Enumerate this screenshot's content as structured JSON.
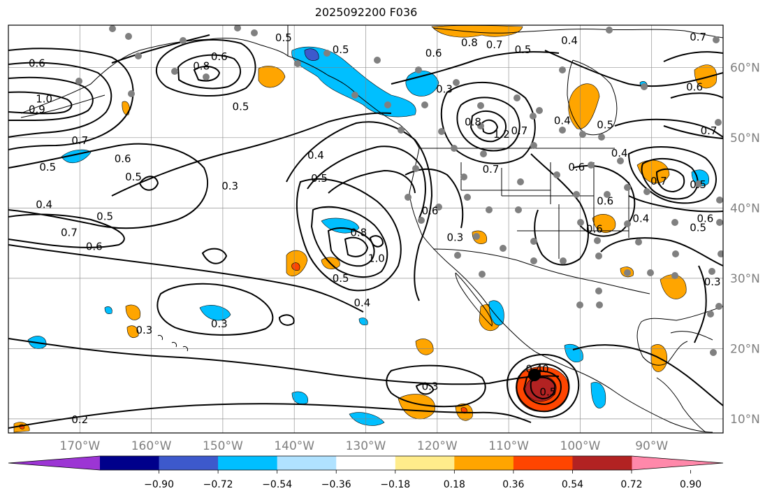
{
  "title": "2025092200 F036",
  "map": {
    "lon_ticks": [
      {
        "lon": -170,
        "label": "170°W"
      },
      {
        "lon": -160,
        "label": "160°W"
      },
      {
        "lon": -150,
        "label": "150°W"
      },
      {
        "lon": -140,
        "label": "140°W"
      },
      {
        "lon": -130,
        "label": "130°W"
      },
      {
        "lon": -120,
        "label": "120°W"
      },
      {
        "lon": -110,
        "label": "110°W"
      },
      {
        "lon": -100,
        "label": "100°W"
      },
      {
        "lon": -90,
        "label": "90°W"
      }
    ],
    "lat_ticks": [
      {
        "lat": 10,
        "label": "10°N"
      },
      {
        "lat": 20,
        "label": "20°N"
      },
      {
        "lat": 30,
        "label": "30°N"
      },
      {
        "lat": 40,
        "label": "40°N"
      },
      {
        "lat": 50,
        "label": "50°N"
      },
      {
        "lat": 60,
        "label": "60°N"
      }
    ],
    "extent": {
      "lon_min": -180,
      "lon_max": -80,
      "lat_min": 8,
      "lat_max": 66
    },
    "gridlines": true,
    "contour_labels": [
      {
        "text": "0.5",
        "lon": -141.5,
        "lat": 64.2
      },
      {
        "text": "0.5",
        "lon": -133.5,
        "lat": 62.5
      },
      {
        "text": "0.6",
        "lon": -176,
        "lat": 60.6
      },
      {
        "text": "0.6",
        "lon": -150.5,
        "lat": 61.5
      },
      {
        "text": "0.8",
        "lon": -153,
        "lat": 60.2
      },
      {
        "text": "1.0",
        "lon": -175,
        "lat": 55.5
      },
      {
        "text": "0.9",
        "lon": -176,
        "lat": 54.0
      },
      {
        "text": "0.5",
        "lon": -147.5,
        "lat": 54.4
      },
      {
        "text": "0.7",
        "lon": -170,
        "lat": 49.6
      },
      {
        "text": "0.5",
        "lon": -174.5,
        "lat": 45.8
      },
      {
        "text": "0.5",
        "lon": -162.5,
        "lat": 44.4
      },
      {
        "text": "0.3",
        "lon": -149,
        "lat": 43.1
      },
      {
        "text": "0.4",
        "lon": -175,
        "lat": 40.5
      },
      {
        "text": "0.5",
        "lon": -166.5,
        "lat": 38.8
      },
      {
        "text": "0.7",
        "lon": -171.5,
        "lat": 36.5
      },
      {
        "text": "0.6",
        "lon": -168,
        "lat": 34.5
      },
      {
        "text": "0.4",
        "lon": -137,
        "lat": 47.5
      },
      {
        "text": "0.5",
        "lon": -136.5,
        "lat": 44.2
      },
      {
        "text": "0.6",
        "lon": -120.5,
        "lat": 62.0
      },
      {
        "text": "0.8",
        "lon": -115.5,
        "lat": 63.5
      },
      {
        "text": "0.7",
        "lon": -112,
        "lat": 63.2
      },
      {
        "text": "0.5",
        "lon": -108,
        "lat": 62.5
      },
      {
        "text": "0.4",
        "lon": -101.5,
        "lat": 63.8
      },
      {
        "text": "0.3",
        "lon": -119,
        "lat": 56.9
      },
      {
        "text": "0.8",
        "lon": -115,
        "lat": 52.2
      },
      {
        "text": "1.2",
        "lon": -111,
        "lat": 50.5
      },
      {
        "text": "0.7",
        "lon": -108.5,
        "lat": 51.0
      },
      {
        "text": "0.7",
        "lon": -112.5,
        "lat": 45.5
      },
      {
        "text": "0.4",
        "lon": -102.5,
        "lat": 52.4
      },
      {
        "text": "0.6",
        "lon": -100.5,
        "lat": 45.8
      },
      {
        "text": "0.5",
        "lon": -96.5,
        "lat": 51.8
      },
      {
        "text": "0.4",
        "lon": -94.5,
        "lat": 47.8
      },
      {
        "text": "0.7",
        "lon": -89,
        "lat": 43.8
      },
      {
        "text": "0.6",
        "lon": -96.5,
        "lat": 41.0
      },
      {
        "text": "0.5",
        "lon": -83.5,
        "lat": 43.3
      },
      {
        "text": "0.4",
        "lon": -91.5,
        "lat": 38.5
      },
      {
        "text": "0.6",
        "lon": -82.5,
        "lat": 38.5
      },
      {
        "text": "0.5",
        "lon": -83.5,
        "lat": 37.2
      },
      {
        "text": "0.7",
        "lon": -82,
        "lat": 51.0
      },
      {
        "text": "0.6",
        "lon": -84,
        "lat": 57.2
      },
      {
        "text": "0.7",
        "lon": -83.5,
        "lat": 64.3
      },
      {
        "text": "0.6",
        "lon": -98,
        "lat": 37.0
      },
      {
        "text": "0.3",
        "lon": -81.5,
        "lat": 29.5
      },
      {
        "text": "0.6",
        "lon": -121,
        "lat": 39.6
      },
      {
        "text": "0.8",
        "lon": -131,
        "lat": 36.5
      },
      {
        "text": "1.0",
        "lon": -128.5,
        "lat": 32.8
      },
      {
        "text": "0.3",
        "lon": -117.5,
        "lat": 35.8
      },
      {
        "text": "0.5",
        "lon": -133.5,
        "lat": 30.0
      },
      {
        "text": "0.4",
        "lon": -130.5,
        "lat": 26.5
      },
      {
        "text": "0.3",
        "lon": -150.5,
        "lat": 23.5
      },
      {
        "text": "0.3",
        "lon": -161,
        "lat": 22.6
      },
      {
        "text": "0.3",
        "lon": -121,
        "lat": 14.6
      },
      {
        "text": "0.2",
        "lon": -170,
        "lat": 9.9
      },
      {
        "text": "0.40",
        "lon": -106,
        "lat": 17.1
      },
      {
        "text": "0.6",
        "lon": -164,
        "lat": 47.0
      },
      {
        "text": "0.5",
        "lon": -104.5,
        "lat": 13.8
      }
    ],
    "colors": {
      "land_border": "#000000",
      "contour": "#000000",
      "grid": "#808080",
      "station_dot": "#808080"
    }
  },
  "colorbar": {
    "colors": [
      "#9c35d4",
      "#00008b",
      "#3d59cc",
      "#00bfff",
      "#b0e2ff",
      "#ffffff",
      "#ffec8b",
      "#ffa500",
      "#ff4500",
      "#b22222",
      "#ff88aa"
    ],
    "tick_labels": [
      "−0.90",
      "−0.72",
      "−0.54",
      "−0.36",
      "−0.18",
      "0.18",
      "0.36",
      "0.54",
      "0.72",
      "0.90"
    ]
  }
}
